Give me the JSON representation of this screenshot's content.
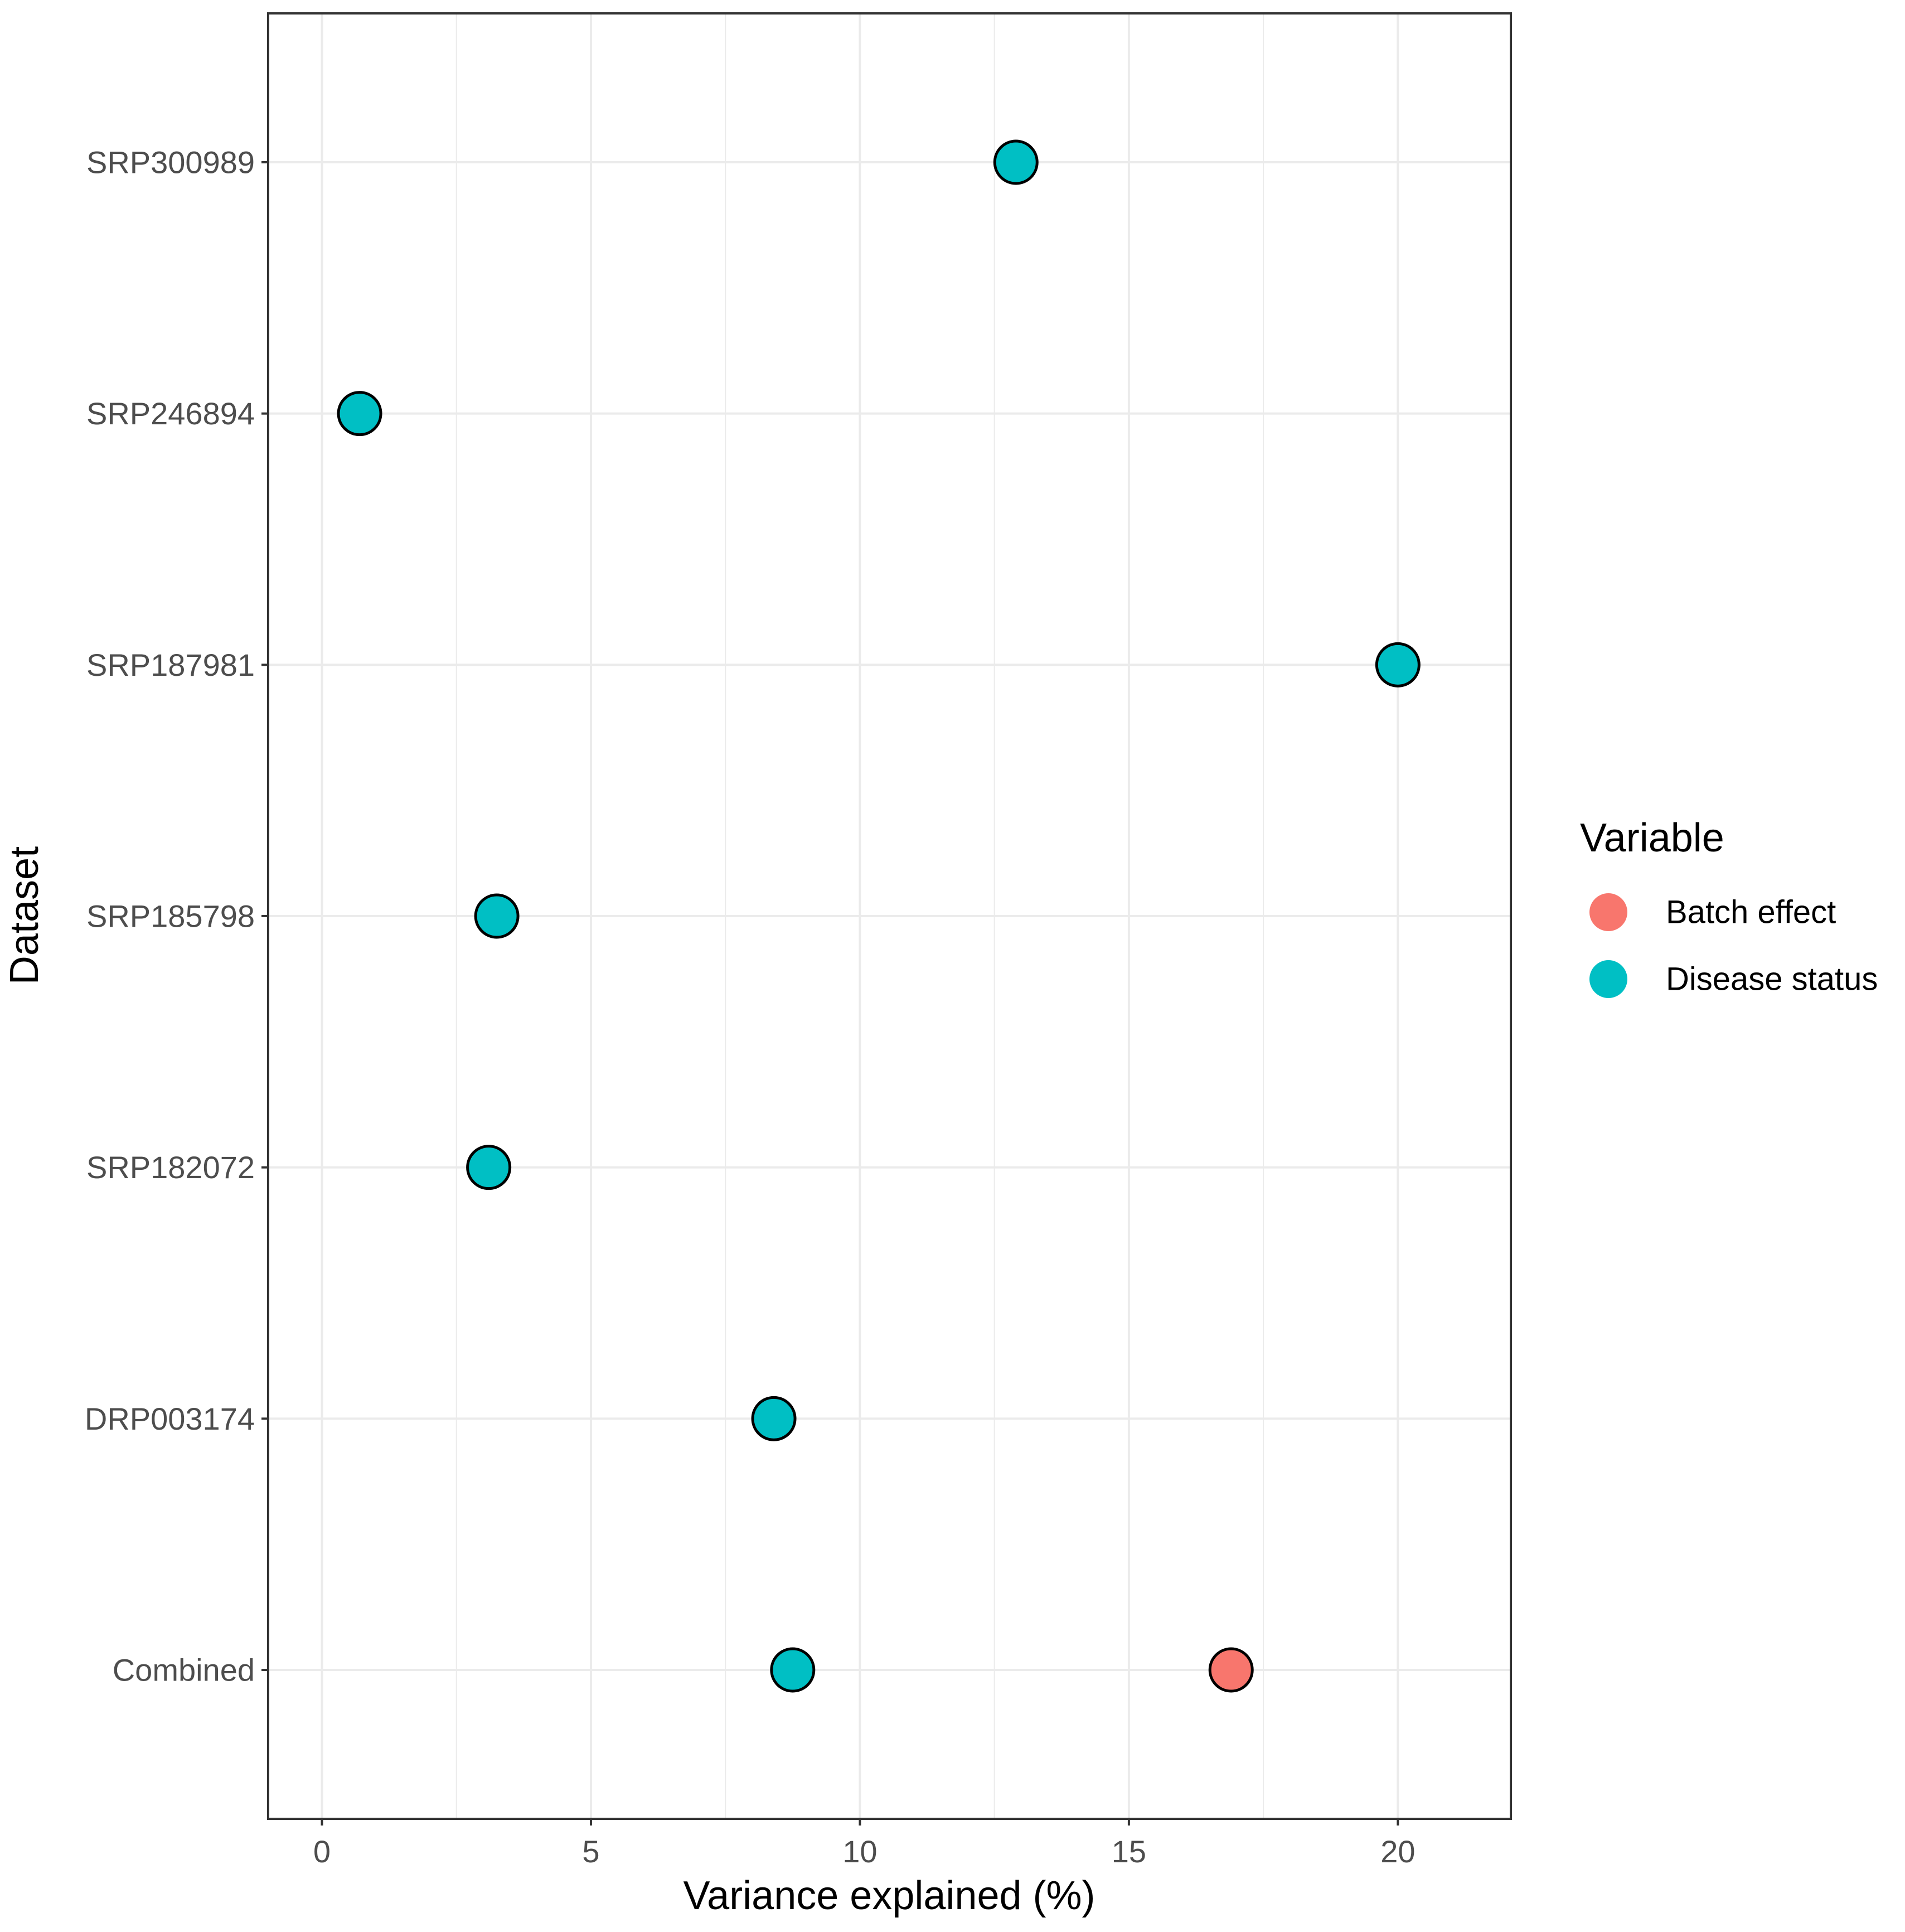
{
  "chart_data": {
    "type": "scatter",
    "title": "",
    "xlabel": "Variance explained (%)",
    "ylabel": "Dataset",
    "xlim": [
      -1.0,
      22.1
    ],
    "xticks": [
      0,
      5,
      10,
      15,
      20
    ],
    "grid": true,
    "categories": [
      "SRP300989",
      "SRP246894",
      "SRP187981",
      "SRP185798",
      "SRP182072",
      "DRP003174",
      "Combined"
    ],
    "legend": {
      "title": "Variable",
      "placement": "right",
      "items": [
        {
          "name": "Batch effect",
          "color": "#F8766D"
        },
        {
          "name": "Disease status",
          "color": "#00BFC4"
        }
      ]
    },
    "series": [
      {
        "name": "Batch effect",
        "color": "#F8766D",
        "points": [
          {
            "category": "Combined",
            "x": 16.9
          }
        ]
      },
      {
        "name": "Disease status",
        "color": "#00BFC4",
        "points": [
          {
            "category": "SRP300989",
            "x": 12.9
          },
          {
            "category": "SRP246894",
            "x": 0.7
          },
          {
            "category": "SRP187981",
            "x": 20.0
          },
          {
            "category": "SRP185798",
            "x": 3.25
          },
          {
            "category": "SRP182072",
            "x": 3.1
          },
          {
            "category": "DRP003174",
            "x": 8.4
          },
          {
            "category": "Combined",
            "x": 8.75
          }
        ]
      }
    ]
  }
}
